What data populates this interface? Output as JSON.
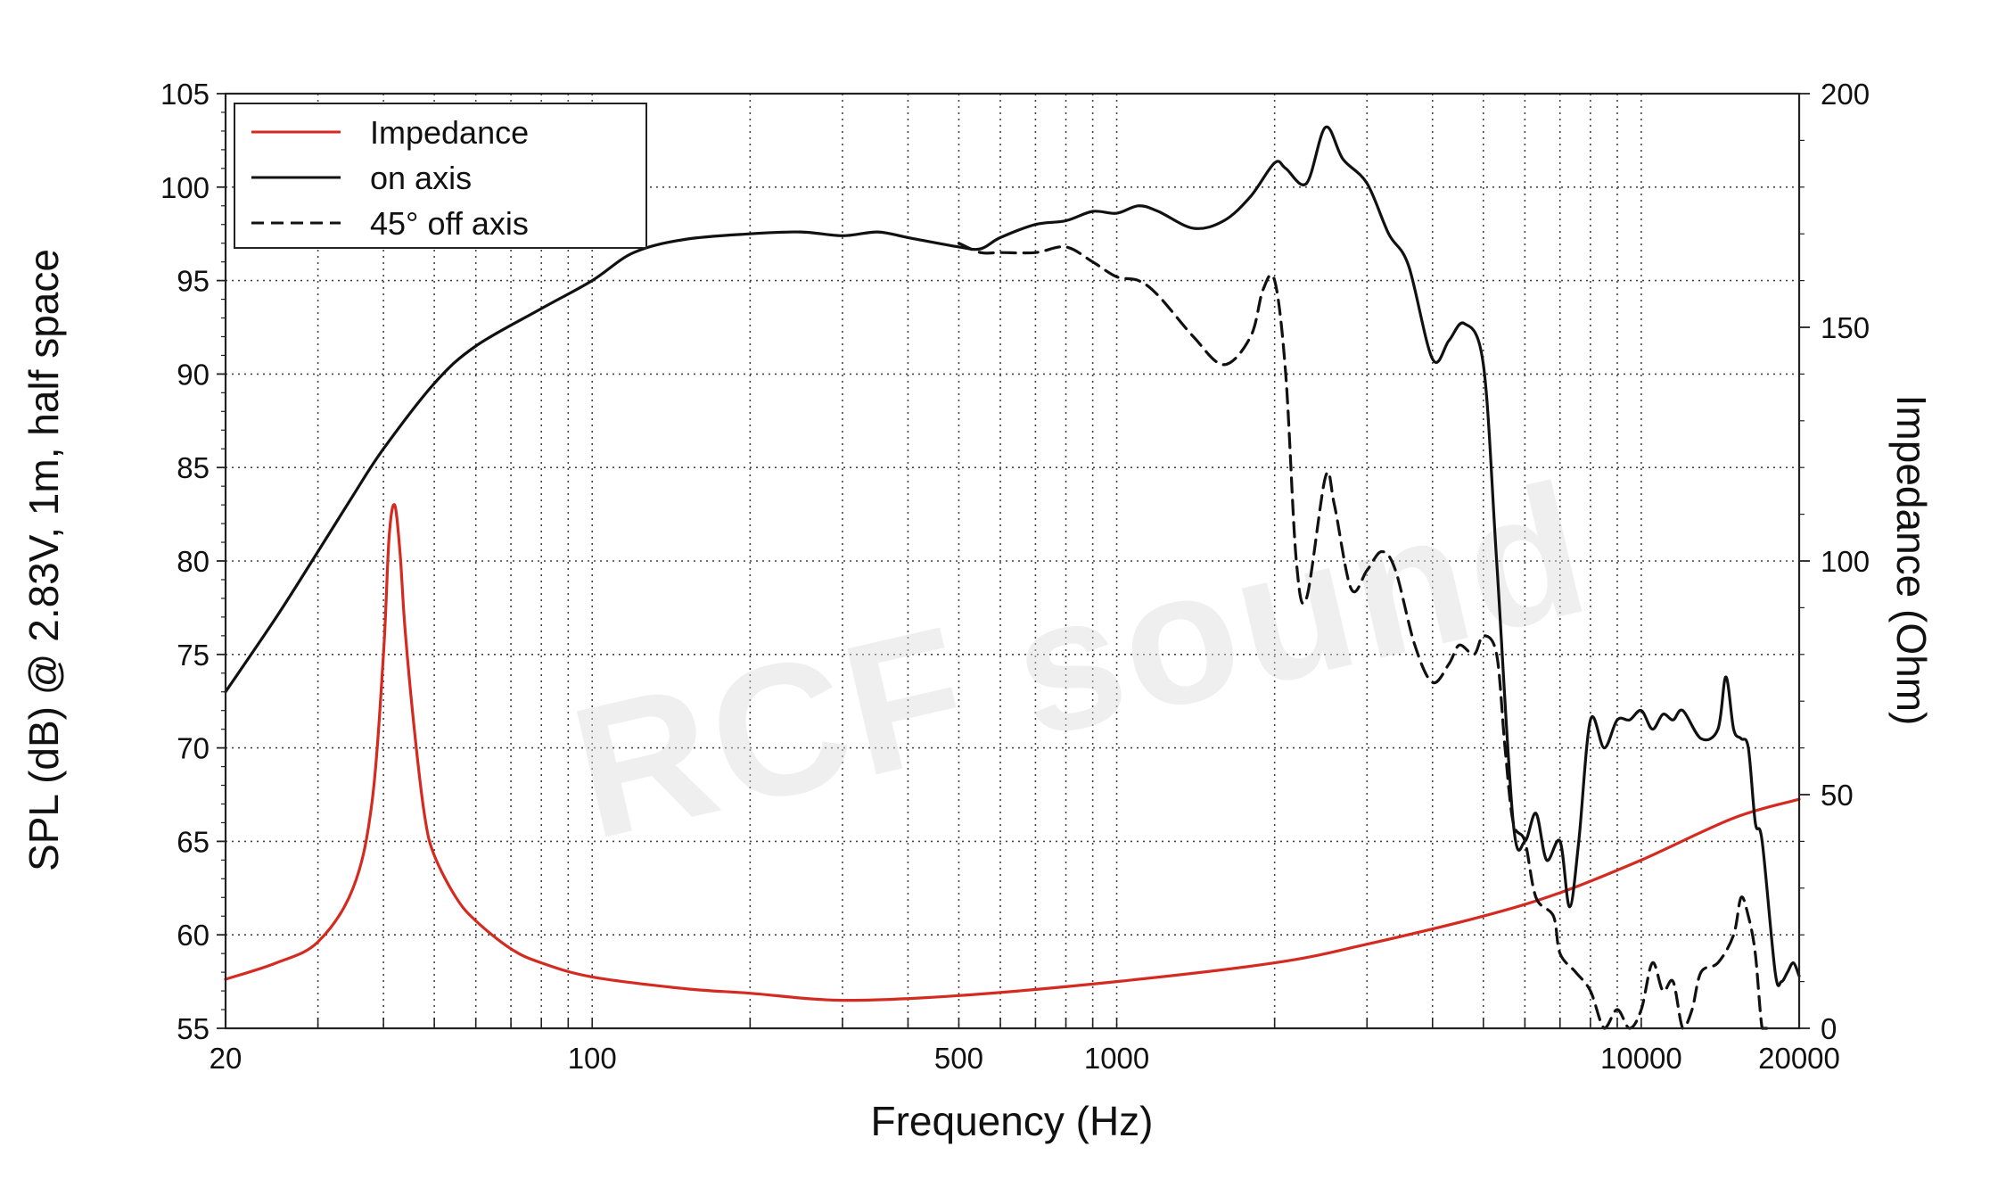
{
  "chart_data": {
    "type": "line",
    "title": "",
    "xlabel": "Frequency (Hz)",
    "ylabel": "SPL (dB) @ 2.83V, 1m, half space",
    "y2label": "Impedance (Ohm)",
    "x_scale": "log",
    "xlim": [
      20,
      20000
    ],
    "ylim": [
      55,
      105
    ],
    "y2lim": [
      0,
      200
    ],
    "x_ticks": [
      20,
      100,
      500,
      1000,
      10000,
      20000
    ],
    "x_tick_labels": [
      "20",
      "100",
      "500",
      "1000",
      "10000",
      "20000"
    ],
    "y_ticks": [
      55,
      60,
      65,
      70,
      75,
      80,
      85,
      90,
      95,
      100,
      105
    ],
    "y2_ticks": [
      0,
      50,
      100,
      150,
      200
    ],
    "grid": true,
    "legend_position": "top-left",
    "watermark": "RCF sound",
    "series": [
      {
        "name": "Impedance",
        "axis": "right",
        "color": "#d42a20",
        "style": "solid",
        "x": [
          20,
          25,
          30,
          35,
          38,
          40,
          41,
          42,
          43,
          44,
          46,
          48,
          50,
          55,
          60,
          70,
          80,
          100,
          150,
          200,
          300,
          500,
          1000,
          2000,
          3000,
          5000,
          7000,
          10000,
          15000,
          20000
        ],
        "y": [
          10.5,
          14,
          18.5,
          30,
          48,
          80,
          105,
          112,
          102,
          85,
          62,
          45,
          37,
          28,
          23,
          17,
          14,
          11,
          8.5,
          7.5,
          6,
          7,
          10,
          14,
          18,
          24,
          29,
          36,
          45,
          49
        ]
      },
      {
        "name": "on axis",
        "axis": "left",
        "color": "#111111",
        "style": "solid",
        "x": [
          20,
          25,
          30,
          35,
          40,
          50,
          60,
          80,
          100,
          120,
          150,
          200,
          250,
          300,
          350,
          400,
          500,
          550,
          600,
          700,
          800,
          900,
          1000,
          1100,
          1200,
          1400,
          1600,
          1800,
          2000,
          2100,
          2300,
          2500,
          2700,
          3000,
          3300,
          3600,
          4000,
          4300,
          4600,
          5000,
          5300,
          5700,
          6000,
          6300,
          6600,
          7000,
          7300,
          7600,
          8000,
          8500,
          9000,
          9500,
          10000,
          10500,
          11000,
          11500,
          12000,
          13000,
          14000,
          14500,
          15000,
          15500,
          16000,
          16500,
          17000,
          18000,
          18500,
          19000,
          19500,
          20000
        ],
        "y": [
          73,
          77,
          80.5,
          83.5,
          86,
          89.5,
          91.5,
          93.5,
          95,
          96.5,
          97.2,
          97.5,
          97.6,
          97.4,
          97.6,
          97.3,
          96.8,
          96.7,
          97.3,
          98,
          98.2,
          98.7,
          98.6,
          99,
          98.7,
          97.8,
          98.2,
          99.5,
          101.3,
          101,
          100.2,
          103.2,
          101.5,
          100.2,
          97.5,
          95.8,
          90.8,
          91.8,
          92.7,
          90.5,
          80,
          66,
          65,
          66.5,
          64,
          65,
          61.5,
          65,
          71.5,
          70,
          71.5,
          71.5,
          72,
          71,
          71.8,
          71.5,
          72,
          70.5,
          71,
          73.8,
          71,
          70.5,
          70,
          66,
          65,
          58,
          57.5,
          58,
          58.5,
          57.8
        ]
      },
      {
        "name": "45° off axis",
        "axis": "left",
        "color": "#111111",
        "style": "dashed",
        "x": [
          500,
          550,
          600,
          700,
          800,
          900,
          1000,
          1100,
          1200,
          1400,
          1600,
          1800,
          1900,
          2000,
          2100,
          2200,
          2300,
          2500,
          2600,
          2800,
          3000,
          3200,
          3400,
          3700,
          4000,
          4300,
          4500,
          4800,
          5000,
          5300,
          5500,
          5700,
          6000,
          6300,
          6800,
          7000,
          7500,
          8000,
          8500,
          9000,
          9500,
          10000,
          10500,
          11000,
          11500,
          12000,
          12500,
          13000,
          14000,
          15000,
          15500,
          16000,
          16500,
          17000,
          17500
        ],
        "y": [
          97,
          96.5,
          96.5,
          96.5,
          96.8,
          96,
          95.2,
          95,
          94.2,
          92,
          90.5,
          92,
          94.5,
          95,
          90,
          80,
          78,
          84.5,
          83,
          78.5,
          79.5,
          80.5,
          79.5,
          75.5,
          73.5,
          74.5,
          75.5,
          75,
          76,
          75,
          70,
          66,
          65,
          62,
          61,
          59,
          58,
          57,
          55,
          56,
          55,
          56,
          58.5,
          57,
          57.5,
          55,
          56,
          58,
          58.5,
          60,
          62,
          61,
          59,
          55,
          54
        ]
      }
    ]
  }
}
